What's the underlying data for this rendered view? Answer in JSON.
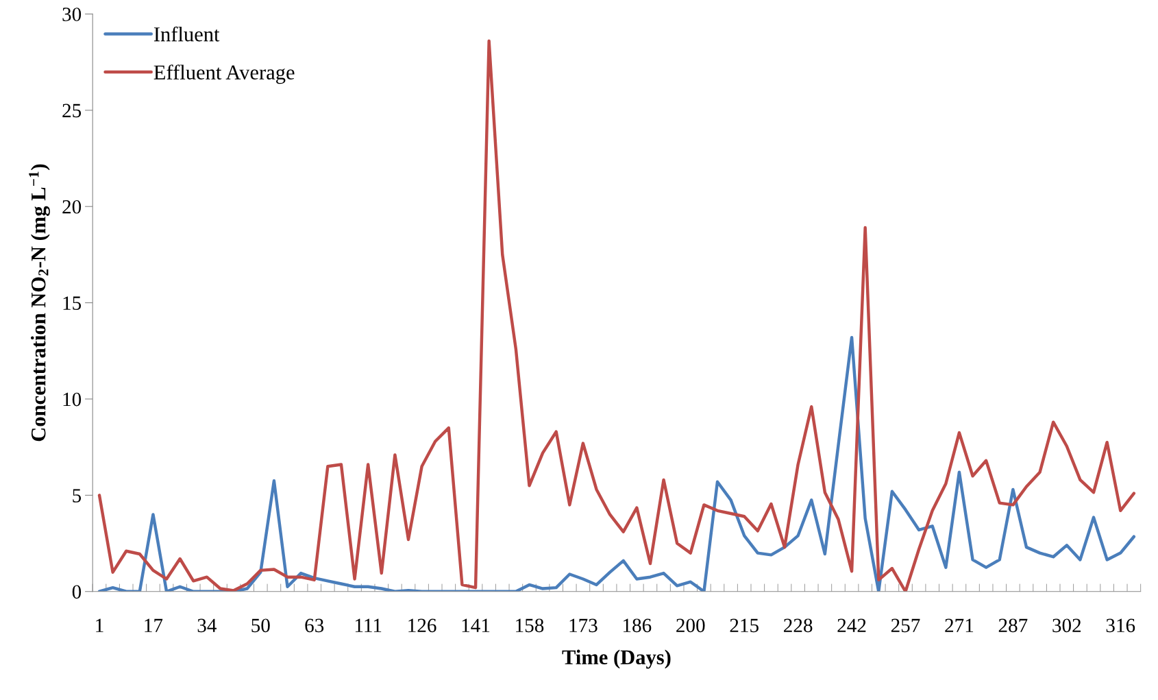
{
  "chart_data": {
    "type": "line",
    "xlabel": "Time (Days)",
    "ylabel": "Concentration NO$_{2}$-N (mg L$^{−1}$)",
    "categories": [
      "1",
      null,
      null,
      null,
      "17",
      null,
      null,
      null,
      "34",
      null,
      null,
      null,
      "50",
      null,
      null,
      null,
      "63",
      null,
      null,
      null,
      "111",
      null,
      null,
      null,
      "126",
      null,
      null,
      null,
      "141",
      null,
      null,
      null,
      "158",
      null,
      null,
      null,
      "173",
      null,
      null,
      null,
      "186",
      null,
      null,
      null,
      "200",
      null,
      null,
      null,
      "215",
      null,
      null,
      null,
      "228",
      null,
      null,
      null,
      "242",
      null,
      null,
      null,
      "257",
      null,
      null,
      null,
      "271",
      null,
      null,
      null,
      "287",
      null,
      null,
      null,
      "302",
      null,
      null,
      null,
      "316",
      null
    ],
    "series": [
      {
        "name": "Influent",
        "color": "#4a7ebb",
        "values": [
          0,
          0.2,
          0,
          0,
          4.0,
          0,
          0.25,
          0,
          0,
          0,
          0,
          0.15,
          1.0,
          5.75,
          0.25,
          0.95,
          0.7,
          0.55,
          0.4,
          0.25,
          0.25,
          0.15,
          0,
          0.05,
          0,
          0,
          0,
          0,
          0,
          0,
          0,
          0,
          0.35,
          0.15,
          0.2,
          0.9,
          0.65,
          0.35,
          1.0,
          1.6,
          0.65,
          0.75,
          0.95,
          0.3,
          0.5,
          0,
          5.7,
          4.75,
          2.9,
          2.0,
          1.9,
          2.3,
          2.9,
          4.75,
          1.95,
          7.6,
          13.2,
          3.8,
          0,
          5.2,
          4.25,
          3.2,
          3.4,
          1.25,
          6.2,
          1.65,
          1.25,
          1.65,
          5.3,
          2.3,
          2.0,
          1.8,
          2.4,
          1.65,
          3.85,
          1.65,
          2.0,
          2.85
        ]
      },
      {
        "name": "Effluent Average",
        "color": "#be4b48",
        "values": [
          5.0,
          1.0,
          2.1,
          1.95,
          1.1,
          0.65,
          1.7,
          0.55,
          0.75,
          0.15,
          0.05,
          0.4,
          1.1,
          1.15,
          0.75,
          0.75,
          0.6,
          6.5,
          6.6,
          0.65,
          6.6,
          0.95,
          7.1,
          2.7,
          6.5,
          7.8,
          8.5,
          0.35,
          0.2,
          28.6,
          17.5,
          12.6,
          5.5,
          7.2,
          8.3,
          4.5,
          7.7,
          5.3,
          4.0,
          3.1,
          4.35,
          1.45,
          5.8,
          2.5,
          2.0,
          4.5,
          4.2,
          4.05,
          3.9,
          3.15,
          4.55,
          2.3,
          6.6,
          9.6,
          5.15,
          3.75,
          1.05,
          18.9,
          0.6,
          1.2,
          0,
          2.2,
          4.2,
          5.6,
          8.25,
          6.0,
          6.8,
          4.6,
          4.5,
          5.45,
          6.2,
          8.8,
          7.55,
          5.8,
          5.15,
          7.75,
          4.2,
          5.1
        ]
      }
    ],
    "ylim": [
      0,
      30
    ],
    "yticks": [
      0,
      5,
      10,
      15,
      20,
      25,
      30
    ],
    "legend": "top left",
    "grid": false,
    "marker": "none",
    "line_style": "solid"
  }
}
